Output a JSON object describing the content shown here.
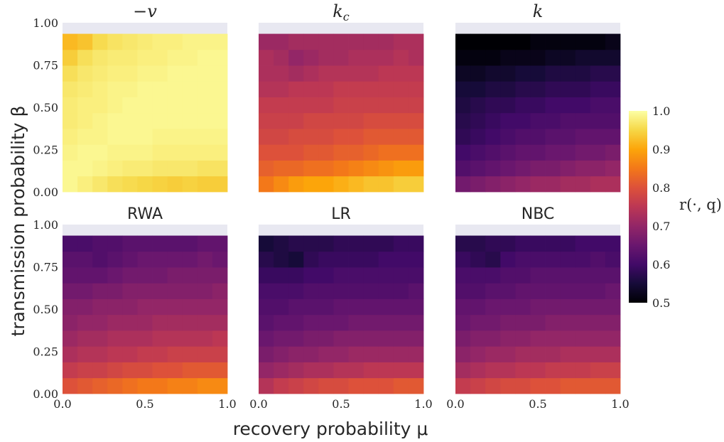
{
  "figure": {
    "ylabel": "transmission probability β",
    "xlabel": "recovery probability μ",
    "colorbar": {
      "label": "r(·, q)",
      "range": [
        0.5,
        1.0
      ],
      "ticks": [
        "0.5",
        "0.6",
        "0.7",
        "0.8",
        "0.9",
        "1.0"
      ],
      "colormap": "inferno"
    },
    "x_ticks": [
      "0.0",
      "0.5",
      "1.0"
    ],
    "y_ticks": [
      "0.00",
      "0.25",
      "0.50",
      "0.75",
      "1.00"
    ],
    "empty_band_color": "#e8e8f1"
  },
  "chart_data": [
    {
      "type": "heatmap",
      "title": "−v",
      "x": [
        0.0,
        0.1,
        0.2,
        0.3,
        0.4,
        0.5,
        0.6,
        0.7,
        0.8,
        0.9,
        1.0
      ],
      "y": [
        0.0,
        0.1,
        0.2,
        0.3,
        0.4,
        0.5,
        0.6,
        0.7,
        0.8,
        0.9
      ],
      "xlim": [
        0,
        1
      ],
      "ylim": [
        0,
        1
      ],
      "values": [
        [
          0.99,
          0.98,
          0.97,
          0.96,
          0.955,
          0.95,
          0.945,
          0.94,
          0.945,
          0.94,
          0.94
        ],
        [
          0.99,
          0.99,
          0.985,
          0.98,
          0.975,
          0.975,
          0.97,
          0.97,
          0.97,
          0.965,
          0.965
        ],
        [
          0.985,
          0.99,
          0.99,
          0.985,
          0.985,
          0.985,
          0.98,
          0.98,
          0.98,
          0.98,
          0.98
        ],
        [
          0.98,
          0.985,
          0.985,
          0.99,
          0.99,
          0.99,
          0.985,
          0.985,
          0.985,
          0.985,
          0.985
        ],
        [
          0.975,
          0.98,
          0.985,
          0.99,
          0.99,
          0.99,
          0.99,
          0.99,
          0.99,
          0.99,
          0.99
        ],
        [
          0.975,
          0.98,
          0.98,
          0.985,
          0.99,
          0.99,
          0.99,
          0.99,
          0.99,
          0.99,
          0.99
        ],
        [
          0.97,
          0.975,
          0.98,
          0.985,
          0.985,
          0.99,
          0.99,
          0.99,
          0.99,
          0.99,
          0.99
        ],
        [
          0.96,
          0.97,
          0.975,
          0.98,
          0.98,
          0.985,
          0.985,
          0.99,
          0.99,
          0.99,
          0.99
        ],
        [
          0.94,
          0.96,
          0.97,
          0.975,
          0.975,
          0.98,
          0.98,
          0.985,
          0.985,
          0.99,
          0.99
        ],
        [
          0.92,
          0.93,
          0.955,
          0.965,
          0.97,
          0.975,
          0.98,
          0.98,
          0.985,
          0.985,
          0.985
        ]
      ]
    },
    {
      "type": "heatmap",
      "title": "k_c",
      "x": [
        0.0,
        0.1,
        0.2,
        0.3,
        0.4,
        0.5,
        0.6,
        0.7,
        0.8,
        0.9,
        1.0
      ],
      "y": [
        0.0,
        0.1,
        0.2,
        0.3,
        0.4,
        0.5,
        0.6,
        0.7,
        0.8,
        0.9
      ],
      "xlim": [
        0,
        1
      ],
      "ylim": [
        0,
        1
      ],
      "values": [
        [
          0.85,
          0.87,
          0.89,
          0.9,
          0.9,
          0.91,
          0.92,
          0.93,
          0.93,
          0.94,
          0.94
        ],
        [
          0.82,
          0.83,
          0.83,
          0.84,
          0.84,
          0.85,
          0.86,
          0.87,
          0.88,
          0.89,
          0.89
        ],
        [
          0.8,
          0.8,
          0.8,
          0.81,
          0.81,
          0.82,
          0.82,
          0.83,
          0.84,
          0.84,
          0.84
        ],
        [
          0.78,
          0.78,
          0.79,
          0.79,
          0.79,
          0.8,
          0.8,
          0.81,
          0.81,
          0.81,
          0.81
        ],
        [
          0.77,
          0.77,
          0.77,
          0.78,
          0.78,
          0.78,
          0.78,
          0.79,
          0.79,
          0.79,
          0.79
        ],
        [
          0.76,
          0.76,
          0.76,
          0.76,
          0.76,
          0.77,
          0.77,
          0.77,
          0.77,
          0.77,
          0.77
        ],
        [
          0.74,
          0.74,
          0.75,
          0.75,
          0.75,
          0.76,
          0.76,
          0.76,
          0.76,
          0.76,
          0.76
        ],
        [
          0.73,
          0.73,
          0.72,
          0.73,
          0.74,
          0.74,
          0.74,
          0.74,
          0.75,
          0.75,
          0.75
        ],
        [
          0.73,
          0.72,
          0.7,
          0.71,
          0.72,
          0.72,
          0.73,
          0.73,
          0.73,
          0.74,
          0.73
        ],
        [
          0.71,
          0.71,
          0.72,
          0.72,
          0.72,
          0.72,
          0.72,
          0.72,
          0.72,
          0.73,
          0.73
        ]
      ]
    },
    {
      "type": "heatmap",
      "title": "k",
      "x": [
        0.0,
        0.1,
        0.2,
        0.3,
        0.4,
        0.5,
        0.6,
        0.7,
        0.8,
        0.9,
        1.0
      ],
      "y": [
        0.0,
        0.1,
        0.2,
        0.3,
        0.4,
        0.5,
        0.6,
        0.7,
        0.8,
        0.9
      ],
      "xlim": [
        0,
        1
      ],
      "ylim": [
        0,
        1
      ],
      "values": [
        [
          0.66,
          0.67,
          0.68,
          0.69,
          0.7,
          0.71,
          0.71,
          0.72,
          0.72,
          0.73,
          0.73
        ],
        [
          0.62,
          0.63,
          0.64,
          0.65,
          0.66,
          0.67,
          0.67,
          0.68,
          0.69,
          0.69,
          0.7
        ],
        [
          0.6,
          0.61,
          0.62,
          0.63,
          0.64,
          0.64,
          0.65,
          0.65,
          0.66,
          0.66,
          0.67
        ],
        [
          0.58,
          0.59,
          0.6,
          0.61,
          0.62,
          0.62,
          0.63,
          0.63,
          0.64,
          0.64,
          0.64
        ],
        [
          0.57,
          0.58,
          0.59,
          0.6,
          0.6,
          0.61,
          0.61,
          0.62,
          0.62,
          0.62,
          0.62
        ],
        [
          0.56,
          0.57,
          0.58,
          0.58,
          0.59,
          0.59,
          0.6,
          0.6,
          0.6,
          0.61,
          0.61
        ],
        [
          0.55,
          0.55,
          0.56,
          0.56,
          0.57,
          0.57,
          0.58,
          0.58,
          0.58,
          0.59,
          0.59
        ],
        [
          0.53,
          0.53,
          0.54,
          0.54,
          0.55,
          0.55,
          0.56,
          0.56,
          0.56,
          0.57,
          0.57
        ],
        [
          0.51,
          0.51,
          0.51,
          0.52,
          0.52,
          0.52,
          0.53,
          0.53,
          0.54,
          0.54,
          0.54
        ],
        [
          0.5,
          0.5,
          0.5,
          0.5,
          0.5,
          0.51,
          0.51,
          0.51,
          0.51,
          0.51,
          0.52
        ]
      ]
    },
    {
      "type": "heatmap",
      "title": "RWA",
      "x": [
        0.0,
        0.1,
        0.2,
        0.3,
        0.4,
        0.5,
        0.6,
        0.7,
        0.8,
        0.9,
        1.0
      ],
      "y": [
        0.0,
        0.1,
        0.2,
        0.3,
        0.4,
        0.5,
        0.6,
        0.7,
        0.8,
        0.9
      ],
      "xlim": [
        0,
        1
      ],
      "ylim": [
        0,
        1
      ],
      "values": [
        [
          0.8,
          0.81,
          0.82,
          0.83,
          0.84,
          0.85,
          0.85,
          0.86,
          0.86,
          0.87,
          0.87
        ],
        [
          0.76,
          0.77,
          0.77,
          0.78,
          0.79,
          0.79,
          0.8,
          0.8,
          0.81,
          0.81,
          0.81
        ],
        [
          0.73,
          0.74,
          0.74,
          0.75,
          0.75,
          0.76,
          0.76,
          0.77,
          0.77,
          0.77,
          0.77
        ],
        [
          0.71,
          0.72,
          0.72,
          0.73,
          0.73,
          0.73,
          0.74,
          0.74,
          0.74,
          0.74,
          0.75
        ],
        [
          0.69,
          0.7,
          0.7,
          0.71,
          0.71,
          0.71,
          0.72,
          0.72,
          0.72,
          0.72,
          0.72
        ],
        [
          0.68,
          0.68,
          0.69,
          0.69,
          0.69,
          0.7,
          0.7,
          0.7,
          0.7,
          0.7,
          0.7
        ],
        [
          0.66,
          0.66,
          0.67,
          0.67,
          0.68,
          0.68,
          0.68,
          0.68,
          0.68,
          0.68,
          0.69
        ],
        [
          0.64,
          0.64,
          0.64,
          0.65,
          0.66,
          0.66,
          0.66,
          0.67,
          0.67,
          0.67,
          0.67
        ],
        [
          0.63,
          0.63,
          0.62,
          0.63,
          0.64,
          0.65,
          0.65,
          0.65,
          0.65,
          0.66,
          0.65
        ],
        [
          0.61,
          0.61,
          0.62,
          0.62,
          0.63,
          0.63,
          0.63,
          0.63,
          0.63,
          0.64,
          0.64
        ]
      ]
    },
    {
      "type": "heatmap",
      "title": "LR",
      "x": [
        0.0,
        0.1,
        0.2,
        0.3,
        0.4,
        0.5,
        0.6,
        0.7,
        0.8,
        0.9,
        1.0
      ],
      "y": [
        0.0,
        0.1,
        0.2,
        0.3,
        0.4,
        0.5,
        0.6,
        0.7,
        0.8,
        0.9
      ],
      "xlim": [
        0,
        1
      ],
      "ylim": [
        0,
        1
      ],
      "values": [
        [
          0.74,
          0.76,
          0.77,
          0.78,
          0.79,
          0.79,
          0.8,
          0.8,
          0.8,
          0.81,
          0.81
        ],
        [
          0.7,
          0.71,
          0.72,
          0.73,
          0.73,
          0.74,
          0.74,
          0.75,
          0.75,
          0.75,
          0.75
        ],
        [
          0.67,
          0.68,
          0.69,
          0.69,
          0.7,
          0.7,
          0.71,
          0.71,
          0.71,
          0.71,
          0.71
        ],
        [
          0.65,
          0.66,
          0.66,
          0.67,
          0.67,
          0.68,
          0.68,
          0.68,
          0.68,
          0.68,
          0.68
        ],
        [
          0.63,
          0.64,
          0.64,
          0.65,
          0.65,
          0.65,
          0.66,
          0.66,
          0.66,
          0.66,
          0.66
        ],
        [
          0.62,
          0.62,
          0.63,
          0.63,
          0.63,
          0.64,
          0.64,
          0.64,
          0.64,
          0.64,
          0.64
        ],
        [
          0.61,
          0.61,
          0.61,
          0.62,
          0.62,
          0.62,
          0.62,
          0.62,
          0.62,
          0.62,
          0.63
        ],
        [
          0.59,
          0.59,
          0.59,
          0.6,
          0.6,
          0.61,
          0.61,
          0.61,
          0.61,
          0.61,
          0.61
        ],
        [
          0.57,
          0.56,
          0.55,
          0.58,
          0.59,
          0.59,
          0.59,
          0.59,
          0.6,
          0.6,
          0.6
        ],
        [
          0.55,
          0.56,
          0.57,
          0.57,
          0.57,
          0.58,
          0.58,
          0.58,
          0.58,
          0.59,
          0.59
        ]
      ]
    },
    {
      "type": "heatmap",
      "title": "NBC",
      "x": [
        0.0,
        0.1,
        0.2,
        0.3,
        0.4,
        0.5,
        0.6,
        0.7,
        0.8,
        0.9,
        1.0
      ],
      "y": [
        0.0,
        0.1,
        0.2,
        0.3,
        0.4,
        0.5,
        0.6,
        0.7,
        0.8,
        0.9
      ],
      "xlim": [
        0,
        1
      ],
      "ylim": [
        0,
        1
      ],
      "values": [
        [
          0.76,
          0.77,
          0.78,
          0.79,
          0.79,
          0.8,
          0.8,
          0.81,
          0.81,
          0.81,
          0.81
        ],
        [
          0.72,
          0.73,
          0.74,
          0.74,
          0.75,
          0.75,
          0.76,
          0.76,
          0.76,
          0.77,
          0.77
        ],
        [
          0.69,
          0.7,
          0.71,
          0.71,
          0.72,
          0.72,
          0.72,
          0.73,
          0.73,
          0.73,
          0.73
        ],
        [
          0.67,
          0.68,
          0.68,
          0.69,
          0.69,
          0.7,
          0.7,
          0.7,
          0.7,
          0.7,
          0.7
        ],
        [
          0.65,
          0.66,
          0.66,
          0.67,
          0.67,
          0.67,
          0.68,
          0.68,
          0.68,
          0.68,
          0.68
        ],
        [
          0.64,
          0.64,
          0.65,
          0.65,
          0.65,
          0.66,
          0.66,
          0.66,
          0.66,
          0.66,
          0.66
        ],
        [
          0.62,
          0.62,
          0.63,
          0.63,
          0.64,
          0.64,
          0.64,
          0.64,
          0.64,
          0.64,
          0.65
        ],
        [
          0.61,
          0.61,
          0.61,
          0.62,
          0.62,
          0.63,
          0.63,
          0.63,
          0.63,
          0.63,
          0.63
        ],
        [
          0.59,
          0.58,
          0.57,
          0.6,
          0.61,
          0.61,
          0.61,
          0.61,
          0.61,
          0.62,
          0.61
        ],
        [
          0.57,
          0.57,
          0.58,
          0.58,
          0.59,
          0.59,
          0.59,
          0.59,
          0.6,
          0.6,
          0.6
        ]
      ]
    }
  ]
}
